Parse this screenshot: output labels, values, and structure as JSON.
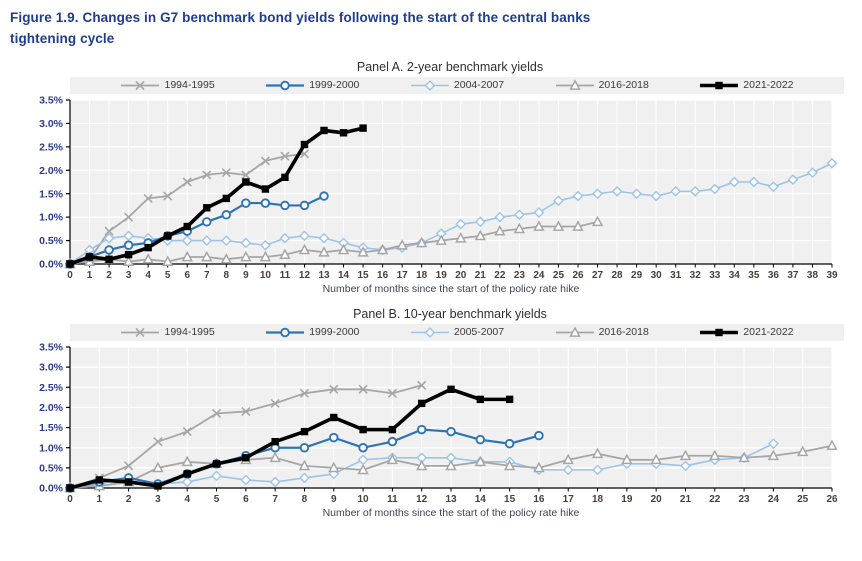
{
  "figure": {
    "title_line1": "Figure 1.9. Changes in G7 benchmark bond yields following the start of the central banks",
    "title_line2": "tightening cycle"
  },
  "colors": {
    "title_blue": "#1f3d8f",
    "axis_label_blue": "#2b3a8e",
    "plot_background": "#f0f0f1",
    "gridline": "#ffffff",
    "series_gray": "#a6a6a6",
    "series_blue": "#2e74b5",
    "series_lightblue": "#9dc3e6",
    "series_black": "#000000"
  },
  "chart_data": [
    {
      "type": "line",
      "title": "Panel A. 2-year benchmark yields",
      "xlabel": "Number of months since the start of the policy rate hike",
      "ylabel": "",
      "ylim": [
        0,
        3.5
      ],
      "ytick_labels": [
        "0.0%",
        "0.5%",
        "1.0%",
        "1.5%",
        "2.0%",
        "2.5%",
        "3.0%",
        "3.5%"
      ],
      "x_ticks": [
        0,
        1,
        2,
        3,
        4,
        5,
        6,
        7,
        8,
        9,
        10,
        11,
        12,
        13,
        14,
        15,
        16,
        17,
        18,
        19,
        20,
        21,
        22,
        23,
        24,
        25,
        26,
        27,
        28,
        29,
        30,
        31,
        32,
        33,
        34,
        35,
        36,
        37,
        38,
        39
      ],
      "grid": true,
      "legend_position": "top",
      "series": [
        {
          "name": "1994-1995",
          "color": "#a6a6a6",
          "marker": "x-cross",
          "line_width": 1.8,
          "values": [
            0,
            0.1,
            0.7,
            1.0,
            1.4,
            1.45,
            1.75,
            1.9,
            1.95,
            1.9,
            2.2,
            2.3,
            2.35
          ]
        },
        {
          "name": "1999-2000",
          "color": "#2e74b5",
          "marker": "circle",
          "line_width": 2.2,
          "values": [
            0,
            0.15,
            0.3,
            0.4,
            0.45,
            0.6,
            0.7,
            0.9,
            1.05,
            1.3,
            1.3,
            1.25,
            1.25,
            1.45
          ]
        },
        {
          "name": "2004-2007",
          "color": "#9dc3e6",
          "marker": "diamond",
          "line_width": 1.6,
          "values": [
            0,
            0.3,
            0.55,
            0.6,
            0.55,
            0.5,
            0.5,
            0.5,
            0.5,
            0.45,
            0.4,
            0.55,
            0.6,
            0.55,
            0.45,
            0.35,
            0.3,
            0.35,
            0.45,
            0.65,
            0.85,
            0.9,
            1.0,
            1.05,
            1.1,
            1.35,
            1.45,
            1.5,
            1.55,
            1.5,
            1.45,
            1.55,
            1.55,
            1.6,
            1.75,
            1.75,
            1.65,
            1.8,
            1.95,
            2.15
          ]
        },
        {
          "name": "2016-2018",
          "color": "#a6a6a6",
          "marker": "triangle",
          "line_width": 1.8,
          "values": [
            0,
            0.05,
            0.1,
            0.05,
            0.1,
            0.05,
            0.15,
            0.15,
            0.1,
            0.15,
            0.15,
            0.2,
            0.3,
            0.25,
            0.3,
            0.25,
            0.3,
            0.4,
            0.45,
            0.5,
            0.55,
            0.6,
            0.7,
            0.75,
            0.8,
            0.8,
            0.8,
            0.9
          ]
        },
        {
          "name": "2021-2022",
          "color": "#000000",
          "marker": "square",
          "line_width": 3.6,
          "values": [
            0,
            0.15,
            0.1,
            0.2,
            0.35,
            0.6,
            0.8,
            1.2,
            1.4,
            1.75,
            1.6,
            1.85,
            2.55,
            2.85,
            2.8,
            2.9
          ]
        }
      ]
    },
    {
      "type": "line",
      "title": "Panel B. 10-year benchmark yields",
      "xlabel": "Number of months since the start of the policy rate hike",
      "ylabel": "",
      "ylim": [
        0,
        3.5
      ],
      "ytick_labels": [
        "0.0%",
        "0.5%",
        "1.0%",
        "1.5%",
        "2.0%",
        "2.5%",
        "3.0%",
        "3.5%"
      ],
      "x_ticks": [
        0,
        1,
        2,
        3,
        4,
        5,
        6,
        7,
        8,
        9,
        10,
        11,
        12,
        13,
        14,
        15,
        16,
        17,
        18,
        19,
        20,
        21,
        22,
        23,
        24,
        25,
        26
      ],
      "grid": true,
      "legend_position": "top",
      "series": [
        {
          "name": "1994-1995",
          "color": "#a6a6a6",
          "marker": "x-cross",
          "line_width": 1.8,
          "values": [
            0,
            0.25,
            0.55,
            1.15,
            1.4,
            1.85,
            1.9,
            2.1,
            2.35,
            2.45,
            2.45,
            2.35,
            2.55
          ]
        },
        {
          "name": "1999-2000",
          "color": "#2e74b5",
          "marker": "circle",
          "line_width": 2.2,
          "values": [
            0,
            0.15,
            0.25,
            0.1,
            0.35,
            0.6,
            0.8,
            1.0,
            1.0,
            1.25,
            1.0,
            1.15,
            1.45,
            1.4,
            1.2,
            1.1,
            1.3
          ]
        },
        {
          "name": "2005-2007",
          "color": "#9dc3e6",
          "marker": "diamond",
          "line_width": 1.6,
          "values": [
            0,
            0.1,
            0.25,
            0.1,
            0.15,
            0.3,
            0.2,
            0.15,
            0.25,
            0.35,
            0.7,
            0.75,
            0.75,
            0.75,
            0.65,
            0.65,
            0.45,
            0.45,
            0.45,
            0.6,
            0.6,
            0.55,
            0.7,
            0.75,
            1.1
          ]
        },
        {
          "name": "2016-2018",
          "color": "#a6a6a6",
          "marker": "triangle",
          "line_width": 1.8,
          "values": [
            0,
            0.05,
            0.15,
            0.5,
            0.65,
            0.6,
            0.7,
            0.75,
            0.55,
            0.5,
            0.45,
            0.7,
            0.55,
            0.55,
            0.65,
            0.55,
            0.5,
            0.7,
            0.85,
            0.7,
            0.7,
            0.8,
            0.8,
            0.75,
            0.8,
            0.9,
            1.05
          ]
        },
        {
          "name": "2021-2022",
          "color": "#000000",
          "marker": "square",
          "line_width": 3.6,
          "values": [
            0,
            0.2,
            0.15,
            0.05,
            0.35,
            0.6,
            0.75,
            1.15,
            1.4,
            1.75,
            1.45,
            1.45,
            2.1,
            2.45,
            2.2,
            2.2
          ]
        }
      ]
    }
  ]
}
